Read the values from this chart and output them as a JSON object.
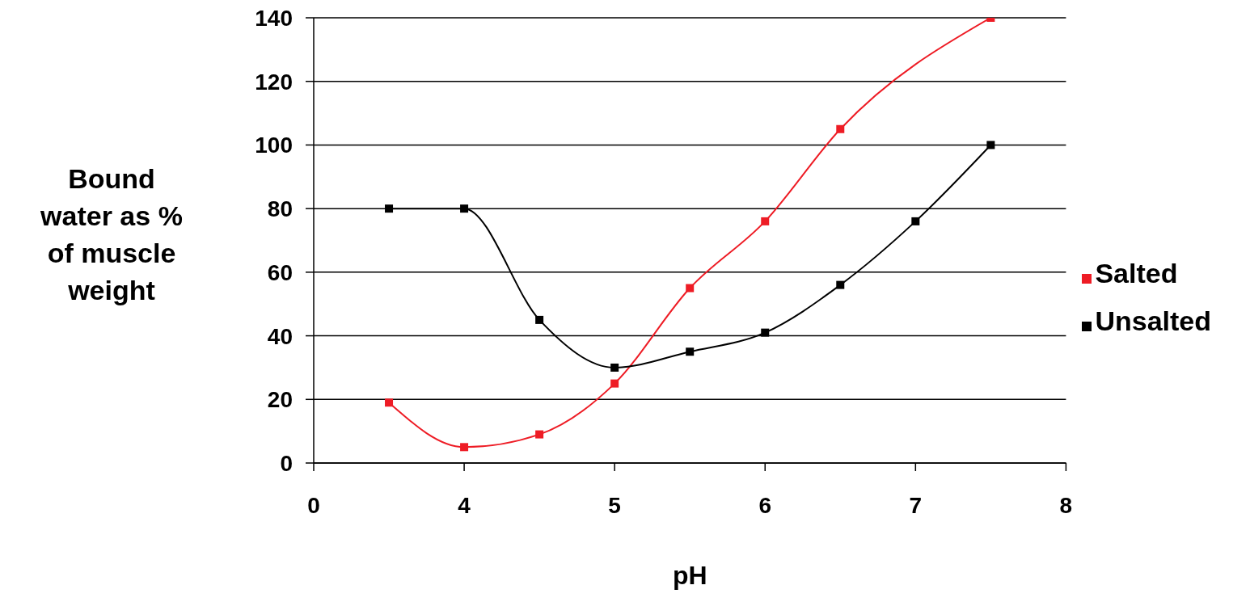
{
  "chart_data": {
    "type": "line",
    "ylabel": "Bound water as % of muscle weight",
    "xlabel": "pH",
    "categories": [
      "0",
      null,
      "4",
      null,
      "5",
      null,
      "6",
      null,
      "7",
      null,
      "8"
    ],
    "ylim": [
      0,
      140
    ],
    "yticks": [
      0,
      20,
      40,
      60,
      80,
      100,
      120,
      140
    ],
    "series": [
      {
        "name": "Salted",
        "color": "#ee1c25",
        "values": [
          null,
          19,
          5,
          9,
          25,
          55,
          76,
          105,
          null,
          140,
          null
        ]
      },
      {
        "name": "Unsalted",
        "color": "#000000",
        "values": [
          null,
          80,
          80,
          45,
          30,
          35,
          41,
          56,
          76,
          100,
          null
        ]
      }
    ],
    "grid": "y",
    "legend": "right",
    "marker": "square",
    "line_style": "solid"
  }
}
